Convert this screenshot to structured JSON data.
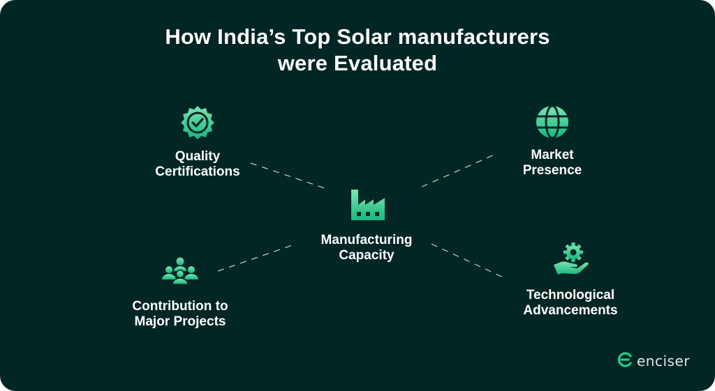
{
  "title": {
    "line1": "How India’s Top Solar manufacturers",
    "line2": "were Evaluated"
  },
  "nodes": {
    "quality": {
      "line1": "Quality",
      "line2": "Certifications",
      "icon": "badge-check-icon"
    },
    "market": {
      "line1": "Market",
      "line2": "Presence",
      "icon": "globe-icon"
    },
    "manufacturing": {
      "line1": "Manufacturing",
      "line2": "Capacity",
      "icon": "factory-icon"
    },
    "contribution": {
      "line1": "Contribution to",
      "line2": "Major Projects",
      "icon": "people-group-icon"
    },
    "technology": {
      "line1": "Technological",
      "line2": "Advancements",
      "icon": "gear-hand-icon"
    }
  },
  "brand": {
    "name": "enciser",
    "icon": "enciser-logo-icon"
  },
  "colors": {
    "background": "#022624",
    "accent": "#1fd08f",
    "accent_light": "#7be3b2",
    "connector": "#c8d2d0"
  }
}
